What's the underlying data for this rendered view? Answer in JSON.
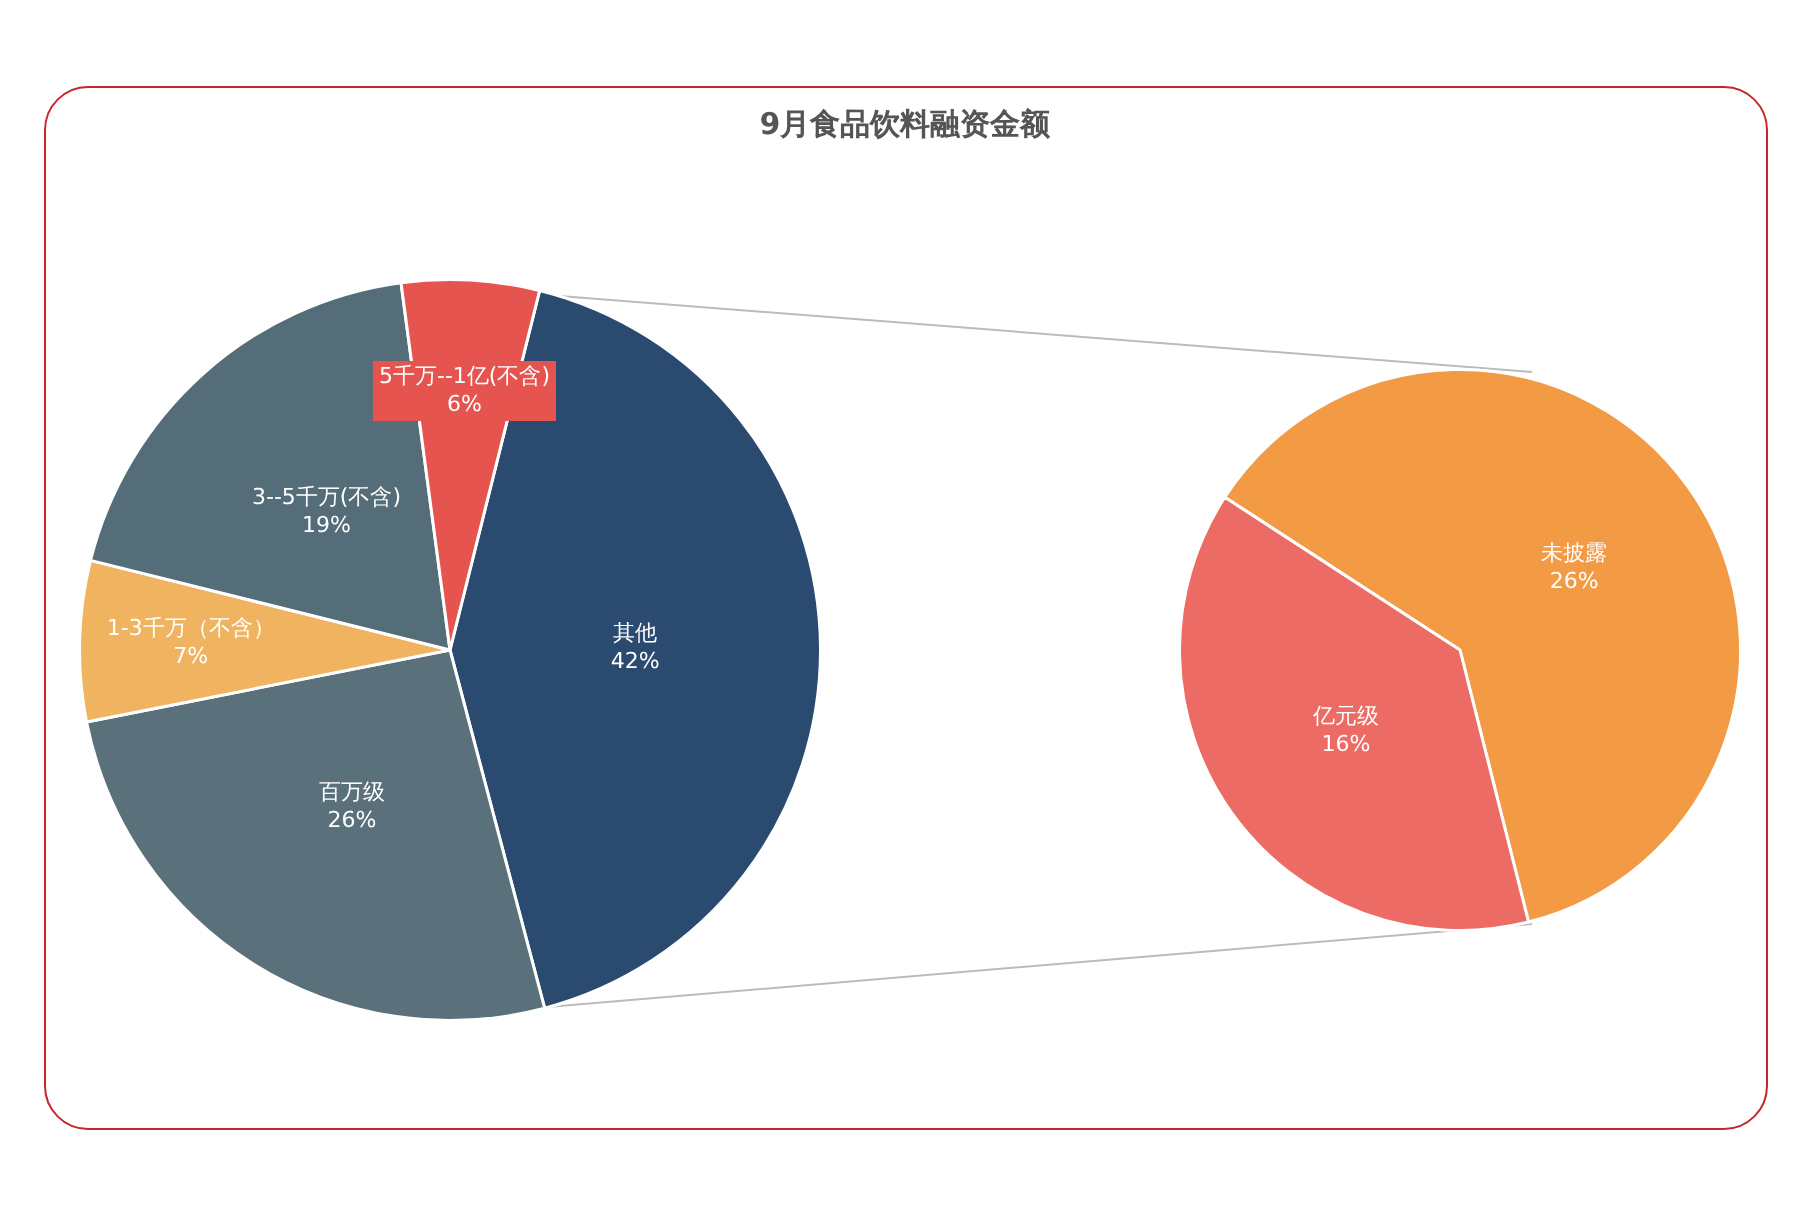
{
  "chart_data": [
    {
      "type": "pie",
      "title": "9月食品饮料融资金额",
      "categories": [
        "其他",
        "百万级",
        "1-3千万（不含）",
        "3--5千万(不含)",
        "5千万--1亿(不含)"
      ],
      "values": [
        42,
        26,
        7,
        19,
        6
      ],
      "colors": [
        "#2b4a6f",
        "#5a717c",
        "#f0b461",
        "#546d78",
        "#e5544f"
      ],
      "value_labels": [
        "42%",
        "26%",
        "7%",
        "19%",
        "6%"
      ]
    },
    {
      "type": "pie",
      "categories": [
        "未披露",
        "亿元级"
      ],
      "values": [
        26,
        16
      ],
      "colors": [
        "#f39a45",
        "#ec6b64"
      ],
      "value_labels": [
        "26%",
        "16%"
      ]
    }
  ]
}
